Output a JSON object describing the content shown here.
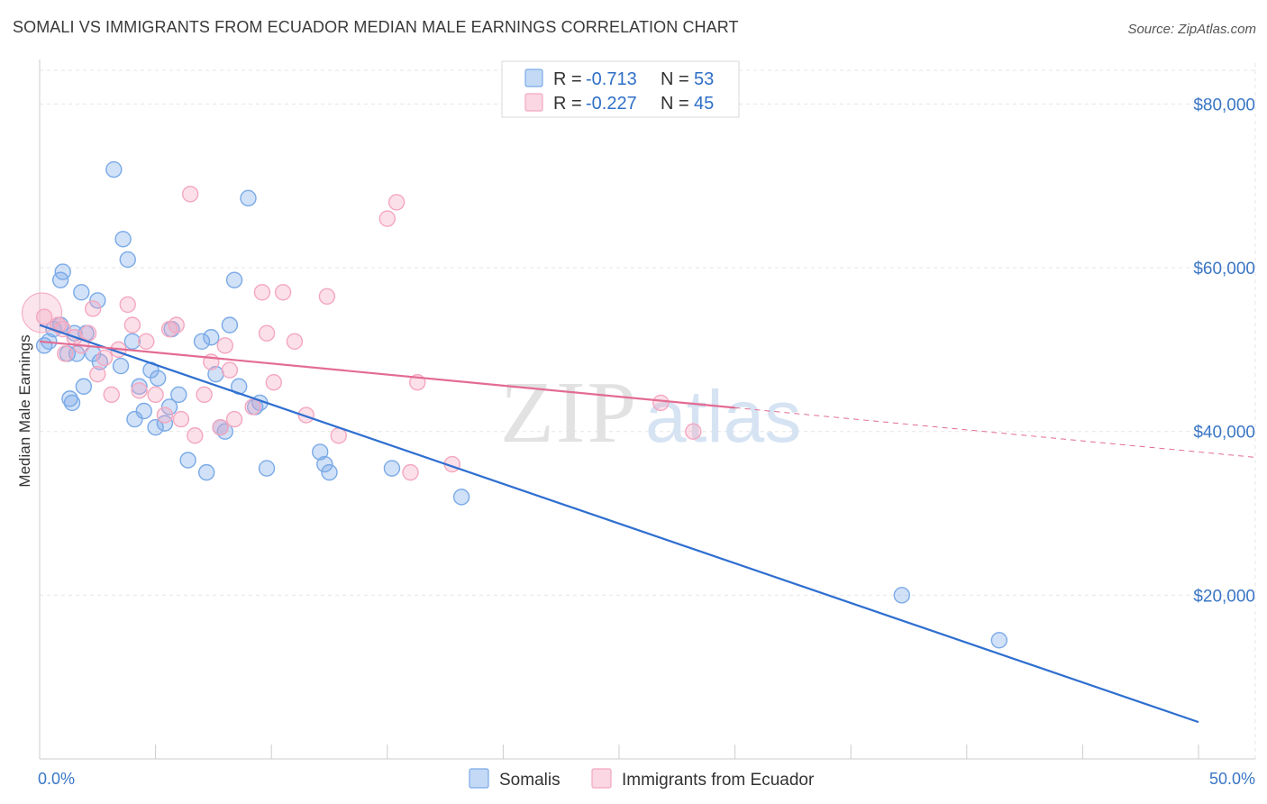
{
  "title": "SOMALI VS IMMIGRANTS FROM ECUADOR MEDIAN MALE EARNINGS CORRELATION CHART",
  "source": "Source: ZipAtlas.com",
  "watermark": {
    "zip": "ZIP",
    "atlas": "atlas"
  },
  "chart_data": {
    "type": "scatter",
    "ylabel": "Median Male Earnings",
    "xlim": [
      0,
      50
    ],
    "ylim": [
      0,
      85000
    ],
    "x_tick_labels": [
      "0.0%",
      "50.0%"
    ],
    "y_ticks": [
      {
        "value": 20000,
        "label": "$20,000"
      },
      {
        "value": 40000,
        "label": "$40,000"
      },
      {
        "value": 60000,
        "label": "$60,000"
      },
      {
        "value": 80000,
        "label": "$80,000"
      }
    ],
    "grid": true,
    "legend_position": "top-center",
    "series": [
      {
        "name": "Somalis",
        "color": "#7aaae8",
        "line_color": "#2f6fd0",
        "r_label": "R =",
        "r_value": "-0.713",
        "n_label": "N =",
        "n_value": "53",
        "trend": {
          "x": [
            0,
            50
          ],
          "y": [
            53000,
            4500
          ],
          "dashed_from": null
        },
        "points": [
          [
            0.2,
            50500
          ],
          [
            0.4,
            51000
          ],
          [
            0.6,
            52500
          ],
          [
            0.9,
            58500
          ],
          [
            0.9,
            53000
          ],
          [
            1.0,
            59500
          ],
          [
            1.2,
            49500
          ],
          [
            1.3,
            44000
          ],
          [
            1.4,
            43500
          ],
          [
            1.5,
            52000
          ],
          [
            1.6,
            49500
          ],
          [
            1.8,
            57000
          ],
          [
            1.9,
            45500
          ],
          [
            2.0,
            52000
          ],
          [
            2.3,
            49500
          ],
          [
            2.5,
            56000
          ],
          [
            2.6,
            48500
          ],
          [
            3.2,
            72000
          ],
          [
            3.5,
            48000
          ],
          [
            3.6,
            63500
          ],
          [
            3.8,
            61000
          ],
          [
            4.0,
            51000
          ],
          [
            4.1,
            41500
          ],
          [
            4.3,
            45500
          ],
          [
            4.5,
            42500
          ],
          [
            4.8,
            47500
          ],
          [
            5.0,
            40500
          ],
          [
            5.1,
            46500
          ],
          [
            5.4,
            41000
          ],
          [
            5.6,
            43000
          ],
          [
            5.7,
            52500
          ],
          [
            6.0,
            44500
          ],
          [
            6.4,
            36500
          ],
          [
            7.0,
            51000
          ],
          [
            7.2,
            35000
          ],
          [
            7.4,
            51500
          ],
          [
            7.6,
            47000
          ],
          [
            7.8,
            40500
          ],
          [
            8.0,
            40000
          ],
          [
            8.2,
            53000
          ],
          [
            8.4,
            58500
          ],
          [
            8.6,
            45500
          ],
          [
            9.0,
            68500
          ],
          [
            9.3,
            43000
          ],
          [
            9.5,
            43500
          ],
          [
            9.8,
            35500
          ],
          [
            12.1,
            37500
          ],
          [
            12.3,
            36000
          ],
          [
            12.5,
            35000
          ],
          [
            15.2,
            35500
          ],
          [
            18.2,
            32000
          ],
          [
            37.2,
            20000
          ],
          [
            41.4,
            14500
          ]
        ]
      },
      {
        "name": "Immigrants from Ecuador",
        "color": "#f4a7bf",
        "line_color": "#e36c93",
        "r_label": "R =",
        "r_value": "-0.227",
        "n_label": "N =",
        "n_value": "45",
        "trend": {
          "x": [
            0,
            50
          ],
          "y": [
            51000,
            37500
          ],
          "dashed_from": 30
        },
        "points": [
          [
            0.2,
            54000
          ],
          [
            0.8,
            53000
          ],
          [
            1.0,
            52500
          ],
          [
            1.1,
            49500
          ],
          [
            1.5,
            51500
          ],
          [
            1.8,
            50500
          ],
          [
            2.1,
            52000
          ],
          [
            2.3,
            55000
          ],
          [
            2.5,
            47000
          ],
          [
            2.8,
            49000
          ],
          [
            3.1,
            44500
          ],
          [
            3.4,
            50000
          ],
          [
            3.8,
            55500
          ],
          [
            4.0,
            53000
          ],
          [
            4.3,
            45000
          ],
          [
            4.6,
            51000
          ],
          [
            5.0,
            44500
          ],
          [
            5.4,
            42000
          ],
          [
            5.6,
            52500
          ],
          [
            5.9,
            53000
          ],
          [
            6.1,
            41500
          ],
          [
            6.5,
            69000
          ],
          [
            6.7,
            39500
          ],
          [
            7.1,
            44500
          ],
          [
            7.4,
            48500
          ],
          [
            7.8,
            40500
          ],
          [
            8.0,
            50500
          ],
          [
            8.2,
            47500
          ],
          [
            8.4,
            41500
          ],
          [
            9.2,
            43000
          ],
          [
            9.6,
            57000
          ],
          [
            9.8,
            52000
          ],
          [
            10.1,
            46000
          ],
          [
            10.5,
            57000
          ],
          [
            11.0,
            51000
          ],
          [
            11.5,
            42000
          ],
          [
            12.4,
            56500
          ],
          [
            12.9,
            39500
          ],
          [
            15.0,
            66000
          ],
          [
            15.4,
            68000
          ],
          [
            16.0,
            35000
          ],
          [
            16.3,
            46000
          ],
          [
            17.8,
            36000
          ],
          [
            26.8,
            43500
          ],
          [
            28.2,
            40000
          ]
        ]
      }
    ]
  }
}
